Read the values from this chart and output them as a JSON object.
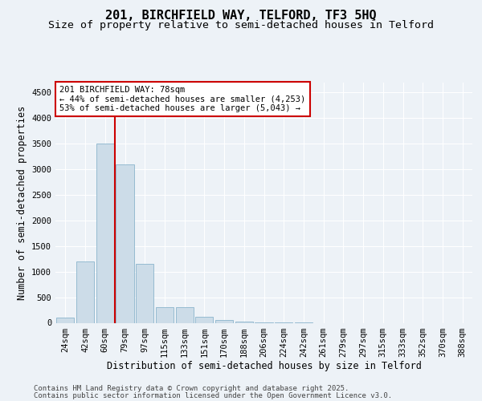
{
  "title1": "201, BIRCHFIELD WAY, TELFORD, TF3 5HQ",
  "title2": "Size of property relative to semi-detached houses in Telford",
  "xlabel": "Distribution of semi-detached houses by size in Telford",
  "ylabel": "Number of semi-detached properties",
  "categories": [
    "24sqm",
    "42sqm",
    "60sqm",
    "79sqm",
    "97sqm",
    "115sqm",
    "133sqm",
    "151sqm",
    "170sqm",
    "188sqm",
    "206sqm",
    "224sqm",
    "242sqm",
    "261sqm",
    "279sqm",
    "297sqm",
    "315sqm",
    "333sqm",
    "352sqm",
    "370sqm",
    "388sqm"
  ],
  "values": [
    100,
    1200,
    3500,
    3100,
    1150,
    300,
    300,
    110,
    55,
    20,
    5,
    2,
    1,
    0,
    0,
    0,
    0,
    0,
    0,
    0,
    0
  ],
  "bar_color": "#ccdce8",
  "bar_edge_color": "#8ab4cc",
  "property_line_color": "#cc0000",
  "annotation_text": "201 BIRCHFIELD WAY: 78sqm\n← 44% of semi-detached houses are smaller (4,253)\n53% of semi-detached houses are larger (5,043) →",
  "annotation_box_facecolor": "#ffffff",
  "annotation_box_edgecolor": "#cc0000",
  "ylim": [
    0,
    4700
  ],
  "yticks": [
    0,
    500,
    1000,
    1500,
    2000,
    2500,
    3000,
    3500,
    4000,
    4500
  ],
  "footer1": "Contains HM Land Registry data © Crown copyright and database right 2025.",
  "footer2": "Contains public sector information licensed under the Open Government Licence v3.0.",
  "background_color": "#edf2f7",
  "plot_bg_color": "#edf2f7",
  "grid_color": "#ffffff",
  "title_fontsize": 11,
  "subtitle_fontsize": 9.5,
  "axis_label_fontsize": 8.5,
  "tick_fontsize": 7.5,
  "footer_fontsize": 6.5
}
